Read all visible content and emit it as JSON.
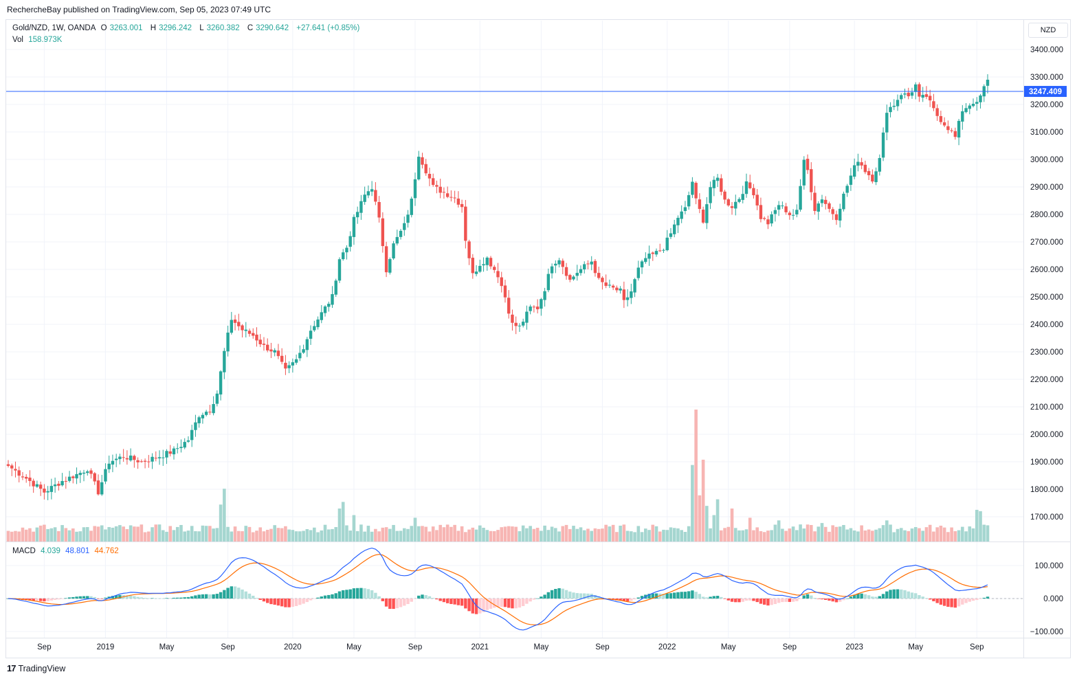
{
  "header": {
    "published_text": "RechercheBay published on TradingView.com, Sep 05, 2023 07:49 UTC"
  },
  "legend": {
    "symbol": "Gold/NZD, 1W, OANDA",
    "o_label": "O",
    "o_value": "3263.001",
    "h_label": "H",
    "h_value": "3296.242",
    "l_label": "L",
    "l_value": "3260.382",
    "c_label": "C",
    "c_value": "3290.642",
    "change": "+27.641 (+0.85%)",
    "vol_label": "Vol",
    "vol_value": "158.973K",
    "macd_label": "MACD",
    "macd_hist": "4.039",
    "macd_line": "48.801",
    "macd_signal": "44.762"
  },
  "currency_button": "NZD",
  "brand": "TradingView",
  "colors": {
    "up": "#26a69a",
    "down": "#ef5350",
    "macd": "#2962ff",
    "signal": "#ff6d00",
    "hline": "#2962ff"
  },
  "chart_data": {
    "type": "candlestick",
    "symbol": "Gold/NZD",
    "interval": "1W",
    "price_axis": {
      "ticks": [
        1700,
        1800,
        1900,
        2000,
        2100,
        2200,
        2300,
        2400,
        2500,
        2600,
        2700,
        2800,
        2900,
        3000,
        3100,
        3200,
        3300,
        3400
      ],
      "tick_labels": [
        "1700.000",
        "1800.000",
        "1900.000",
        "2000.000",
        "2100.000",
        "2200.000",
        "2300.000",
        "2400.000",
        "2500.000",
        "2600.000",
        "2700.000",
        "2800.000",
        "2900.000",
        "3000.000",
        "3100.000",
        "3200.000",
        "3300.000",
        "3400.000"
      ]
    },
    "horizontal_line": {
      "value": 3247.409,
      "label": "3247.409"
    },
    "time_axis": {
      "labels": [
        "Sep",
        "2019",
        "May",
        "Sep",
        "2020",
        "May",
        "Sep",
        "2021",
        "May",
        "Sep",
        "2022",
        "May",
        "Sep",
        "2023",
        "May",
        "Sep"
      ],
      "weeks": [
        10,
        27,
        44,
        61,
        79,
        96,
        113,
        131,
        148,
        165,
        183,
        200,
        217,
        235,
        252,
        269
      ]
    },
    "close_anchors": [
      [
        0,
        1885
      ],
      [
        5,
        1840
      ],
      [
        10,
        1790
      ],
      [
        15,
        1830
      ],
      [
        20,
        1860
      ],
      [
        22,
        1875
      ],
      [
        25,
        1790
      ],
      [
        28,
        1900
      ],
      [
        32,
        1920
      ],
      [
        37,
        1900
      ],
      [
        42,
        1920
      ],
      [
        46,
        1940
      ],
      [
        50,
        1980
      ],
      [
        53,
        2070
      ],
      [
        56,
        2090
      ],
      [
        58,
        2150
      ],
      [
        60,
        2300
      ],
      [
        62,
        2420
      ],
      [
        65,
        2380
      ],
      [
        68,
        2360
      ],
      [
        71,
        2320
      ],
      [
        74,
        2300
      ],
      [
        77,
        2230
      ],
      [
        80,
        2270
      ],
      [
        82,
        2320
      ],
      [
        84,
        2380
      ],
      [
        87,
        2440
      ],
      [
        90,
        2500
      ],
      [
        92,
        2640
      ],
      [
        94,
        2680
      ],
      [
        96,
        2780
      ],
      [
        99,
        2870
      ],
      [
        101,
        2900
      ],
      [
        103,
        2780
      ],
      [
        105,
        2600
      ],
      [
        107,
        2690
      ],
      [
        110,
        2760
      ],
      [
        112,
        2850
      ],
      [
        114,
        3020
      ],
      [
        116,
        2960
      ],
      [
        118,
        2900
      ],
      [
        121,
        2880
      ],
      [
        124,
        2860
      ],
      [
        126,
        2830
      ],
      [
        127,
        2710
      ],
      [
        129,
        2580
      ],
      [
        131,
        2620
      ],
      [
        133,
        2640
      ],
      [
        136,
        2580
      ],
      [
        138,
        2500
      ],
      [
        140,
        2400
      ],
      [
        142,
        2390
      ],
      [
        145,
        2460
      ],
      [
        147,
        2460
      ],
      [
        149,
        2530
      ],
      [
        151,
        2620
      ],
      [
        153,
        2640
      ],
      [
        156,
        2560
      ],
      [
        158,
        2590
      ],
      [
        160,
        2610
      ],
      [
        162,
        2630
      ],
      [
        164,
        2560
      ],
      [
        166,
        2540
      ],
      [
        168,
        2530
      ],
      [
        170,
        2520
      ],
      [
        171,
        2480
      ],
      [
        173,
        2520
      ],
      [
        175,
        2600
      ],
      [
        177,
        2640
      ],
      [
        180,
        2660
      ],
      [
        182,
        2680
      ],
      [
        184,
        2730
      ],
      [
        186,
        2790
      ],
      [
        188,
        2820
      ],
      [
        190,
        2920
      ],
      [
        191,
        2850
      ],
      [
        193,
        2780
      ],
      [
        195,
        2900
      ],
      [
        197,
        2930
      ],
      [
        199,
        2850
      ],
      [
        201,
        2830
      ],
      [
        203,
        2860
      ],
      [
        205,
        2910
      ],
      [
        207,
        2880
      ],
      [
        209,
        2790
      ],
      [
        211,
        2770
      ],
      [
        213,
        2820
      ],
      [
        215,
        2830
      ],
      [
        217,
        2790
      ],
      [
        219,
        2820
      ],
      [
        221,
        2990
      ],
      [
        222,
        2960
      ],
      [
        224,
        2820
      ],
      [
        226,
        2860
      ],
      [
        228,
        2820
      ],
      [
        230,
        2790
      ],
      [
        232,
        2870
      ],
      [
        234,
        2940
      ],
      [
        236,
        3000
      ],
      [
        238,
        2960
      ],
      [
        240,
        2930
      ],
      [
        242,
        3000
      ],
      [
        244,
        3180
      ],
      [
        246,
        3200
      ],
      [
        248,
        3240
      ],
      [
        250,
        3230
      ],
      [
        252,
        3270
      ],
      [
        253,
        3220
      ],
      [
        255,
        3230
      ],
      [
        257,
        3180
      ],
      [
        258,
        3160
      ],
      [
        260,
        3130
      ],
      [
        262,
        3100
      ],
      [
        263,
        3080
      ],
      [
        265,
        3180
      ],
      [
        268,
        3210
      ],
      [
        269,
        3200
      ],
      [
        270,
        3230
      ],
      [
        271,
        3260
      ],
      [
        272,
        3290
      ]
    ],
    "volume_spikes": [
      [
        59,
        0.28
      ],
      [
        60,
        0.4
      ],
      [
        92,
        0.25
      ],
      [
        93,
        0.3
      ],
      [
        96,
        0.2
      ],
      [
        113,
        0.18
      ],
      [
        190,
        0.58
      ],
      [
        191,
        1.0
      ],
      [
        192,
        0.35
      ],
      [
        193,
        0.62
      ],
      [
        194,
        0.27
      ],
      [
        196,
        0.2
      ],
      [
        197,
        0.32
      ],
      [
        201,
        0.25
      ],
      [
        206,
        0.18
      ],
      [
        214,
        0.16
      ],
      [
        226,
        0.14
      ],
      [
        244,
        0.16
      ],
      [
        269,
        0.24
      ],
      [
        270,
        0.23
      ]
    ],
    "macd": {
      "ylim": [
        -100,
        100
      ],
      "ticks": [
        100,
        0,
        -100
      ],
      "tick_labels": [
        "100.000",
        "0.000",
        "−100.000"
      ],
      "series": [
        "MACD",
        "Signal",
        "Histogram"
      ]
    }
  }
}
